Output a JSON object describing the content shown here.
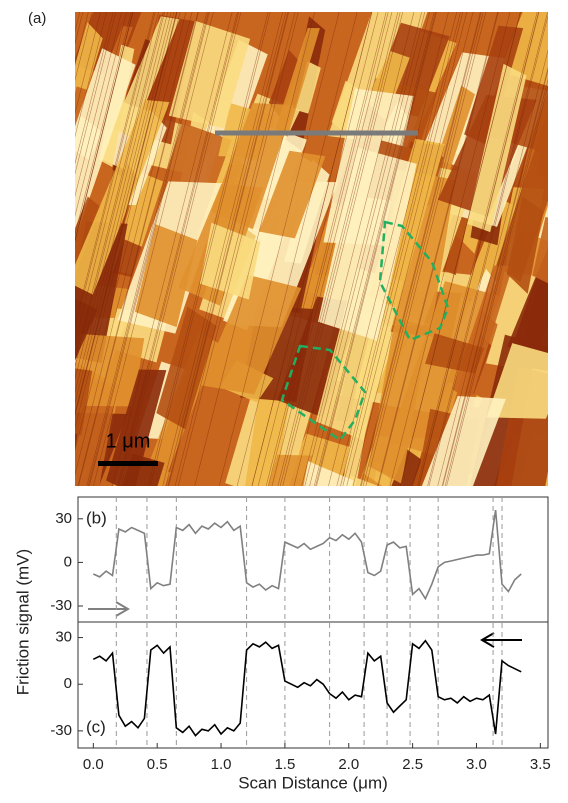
{
  "image": {
    "label": "(a)",
    "scale_bar": "1 μm"
  },
  "chart_data": [
    {
      "type": "line",
      "panel_label": "(b)",
      "ylabel": "Friction signal (mV)",
      "color": "#808080",
      "xlim": [
        -0.12,
        3.56
      ],
      "ylim": [
        -41,
        45
      ],
      "yticks": [
        -30,
        0,
        30
      ],
      "vlines": [
        0.18,
        0.42,
        0.65,
        1.2,
        1.5,
        1.85,
        2.12,
        2.3,
        2.48,
        2.7,
        3.13,
        3.2
      ],
      "x": [
        0,
        0.05,
        0.1,
        0.15,
        0.2,
        0.25,
        0.3,
        0.35,
        0.4,
        0.45,
        0.5,
        0.55,
        0.6,
        0.65,
        0.7,
        0.75,
        0.8,
        0.85,
        0.9,
        0.95,
        1.0,
        1.05,
        1.1,
        1.15,
        1.2,
        1.25,
        1.3,
        1.35,
        1.4,
        1.45,
        1.5,
        1.55,
        1.6,
        1.65,
        1.7,
        1.75,
        1.8,
        1.85,
        1.9,
        1.95,
        2.0,
        2.05,
        2.1,
        2.15,
        2.2,
        2.25,
        2.3,
        2.35,
        2.4,
        2.45,
        2.5,
        2.55,
        2.6,
        2.65,
        2.7,
        2.75,
        2.8,
        2.85,
        2.9,
        2.95,
        3.0,
        3.05,
        3.1,
        3.15,
        3.2,
        3.25,
        3.3,
        3.35
      ],
      "values": [
        -8,
        -10,
        -6,
        -9,
        23,
        21,
        24,
        22,
        20,
        -18,
        -14,
        -16,
        -15,
        24,
        22,
        26,
        20,
        25,
        23,
        27,
        24,
        28,
        22,
        25,
        -14,
        -17,
        -15,
        -19,
        -16,
        -18,
        14,
        12,
        10,
        13,
        9,
        11,
        13,
        17,
        15,
        19,
        16,
        20,
        14,
        -7,
        -9,
        -6,
        12,
        14,
        10,
        11,
        -22,
        -18,
        -25,
        -15,
        -3,
        0,
        1,
        2,
        3,
        4,
        5,
        5,
        6,
        36,
        -15,
        -20,
        -12,
        -8
      ]
    },
    {
      "type": "line",
      "panel_label": "(c)",
      "xlabel": "Scan Distance (μm)",
      "color": "#000000",
      "xlim": [
        -0.12,
        3.56
      ],
      "ylim": [
        -41,
        40
      ],
      "yticks": [
        -30,
        0,
        30
      ],
      "xticks": [
        {
          "value": 0,
          "label": "0.0"
        },
        0.5,
        {
          "value": 1,
          "label": "1.0"
        },
        1.5,
        {
          "value": 2,
          "label": "2.0"
        },
        2.5,
        {
          "value": 3,
          "label": "3.0"
        },
        3.5
      ],
      "x": [
        0,
        0.05,
        0.1,
        0.15,
        0.2,
        0.25,
        0.3,
        0.35,
        0.4,
        0.45,
        0.5,
        0.55,
        0.6,
        0.65,
        0.7,
        0.75,
        0.8,
        0.85,
        0.9,
        0.95,
        1.0,
        1.05,
        1.1,
        1.15,
        1.2,
        1.25,
        1.3,
        1.35,
        1.4,
        1.45,
        1.5,
        1.55,
        1.6,
        1.65,
        1.7,
        1.75,
        1.8,
        1.85,
        1.9,
        1.95,
        2.0,
        2.05,
        2.1,
        2.15,
        2.2,
        2.25,
        2.3,
        2.35,
        2.4,
        2.45,
        2.5,
        2.55,
        2.6,
        2.65,
        2.7,
        2.75,
        2.8,
        2.85,
        2.9,
        2.95,
        3.0,
        3.05,
        3.1,
        3.15,
        3.2,
        3.25,
        3.3,
        3.35
      ],
      "values": [
        16,
        18,
        15,
        20,
        -20,
        -27,
        -24,
        -28,
        -22,
        22,
        25,
        20,
        24,
        -28,
        -31,
        -27,
        -33,
        -29,
        -30,
        -26,
        -32,
        -28,
        -30,
        -25,
        22,
        26,
        24,
        27,
        23,
        25,
        2,
        0,
        -2,
        1,
        -1,
        3,
        0,
        -6,
        -9,
        -5,
        -10,
        -7,
        -8,
        20,
        15,
        18,
        -12,
        -18,
        -14,
        -10,
        26,
        23,
        28,
        22,
        -8,
        -10,
        -9,
        -12,
        -8,
        -11,
        -9,
        -10,
        -7,
        -32,
        15,
        12,
        10,
        8
      ]
    }
  ]
}
